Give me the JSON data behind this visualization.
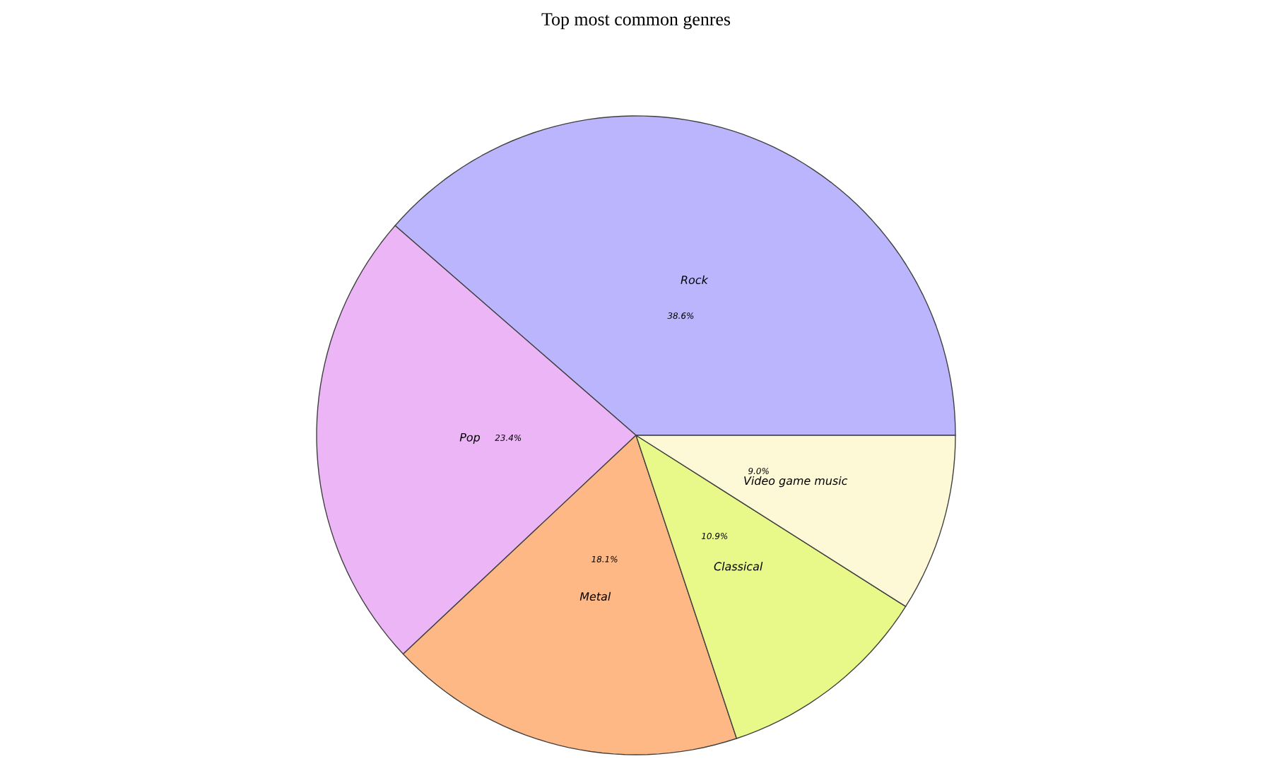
{
  "chart_data": {
    "type": "pie",
    "title": "Top most common genres",
    "categories": [
      "Rock",
      "Pop",
      "Metal",
      "Classical",
      "Video game music"
    ],
    "values": [
      38.6,
      23.4,
      18.1,
      10.9,
      9.0
    ],
    "colors": [
      "#bbb5fe",
      "#ecb5f5",
      "#feb886",
      "#e8f98a",
      "#fdf8d5"
    ],
    "value_labels": [
      "38.6%",
      "23.4%",
      "18.1%",
      "10.9%",
      "9.0%"
    ]
  }
}
